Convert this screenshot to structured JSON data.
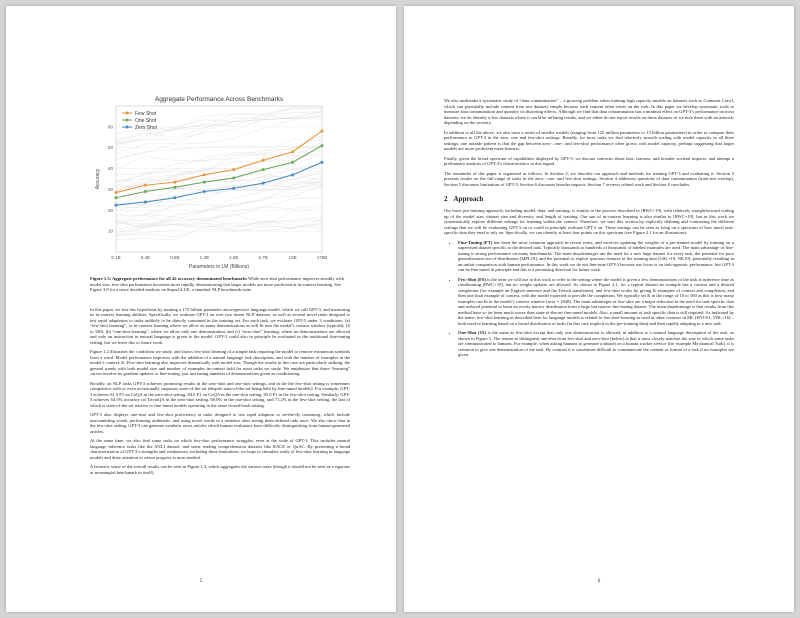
{
  "left_page": {
    "figure": {
      "chart_data": {
        "type": "line",
        "title": "Aggregate Performance Across Benchmarks",
        "xlabel": "Parameters in LM (Billions)",
        "ylabel": "Accuracy",
        "x_ticks": [
          "0.1B",
          "0.4B",
          "0.8B",
          "1.3B",
          "2.6B",
          "6.7B",
          "13B",
          "175B"
        ],
        "y_ticks": [
          "10",
          "20",
          "30",
          "40",
          "50",
          "60"
        ],
        "ylim": [
          0,
          70
        ],
        "legend_position": "top-left",
        "grid": true,
        "series": [
          {
            "name": "Few Shot",
            "color": "#e8963a",
            "values": [
              28.5,
              32,
              33.5,
              37,
              39.5,
              44,
              48,
              58
            ]
          },
          {
            "name": "One Shot",
            "color": "#6aaa5c",
            "values": [
              26,
              29,
              31,
              33.5,
              35.5,
              39.5,
              43,
              51
            ]
          },
          {
            "name": "Zero Shot",
            "color": "#4a8ec2",
            "values": [
              22.5,
              24,
              26,
              29,
              30.5,
              33,
              37,
              43
            ]
          }
        ],
        "bg_lines": {
          "color": "#cccccc",
          "count": 40
        }
      },
      "caption_bold": "Figure 1.3: Aggregate performance for all 42 accuracy-denominated benchmarks",
      "caption_text": "While zero-shot performance improves steadily with model size, few-shot performance increases more rapidly, demonstrating that larger models are more proficient at in-context learning. See Figure 3.8 for a more detailed analysis on SuperGLUE, a standard NLP benchmark suite."
    },
    "paragraphs": [
      "In this paper, we test this hypothesis by training a 175 billion parameter autoregressive language model, which we call GPT-3, and measuring its in-context learning abilities. Specifically, we evaluate GPT-3 on over two dozen NLP datasets, as well as several novel tasks designed to test rapid adaptation to tasks unlikely to be directly contained in the training set. For each task, we evaluate GPT-3 under 3 conditions: (a) “few-shot learning”, or in-context learning where we allow as many demonstrations as will fit into the model’s context window (typically 10 to 100), (b) “one-shot learning”, where we allow only one demonstration, and (c) “zero-shot” learning, where no demonstrations are allowed and only an instruction in natural language is given to the model. GPT-3 could also in principle be evaluated in the traditional fine-tuning setting, but we leave this to future work.",
      "Figure 1.2 illustrates the conditions we study, and shows few-shot learning of a simple task requiring the model to remove extraneous symbols from a word. Model performance improves with the addition of a natural language task description, and with the number of examples in the model’s context, K. Few-shot learning also improves dramatically with model size. Though the results in this case are particularly striking, the general trends with both model size and number of examples in-context hold for most tasks we study. We emphasize that these “learning” curves involve no gradient updates or fine-tuning, just increasing numbers of demonstrations given as conditioning.",
      "Broadly, on NLP tasks GPT-3 achieves promising results in the zero-shot and one-shot settings, and in the the few-shot setting is sometimes competitive with or even occasionally surpasses state-of-the-art (despite state-of-the-art being held by fine-tuned models). For example, GPT-3 achieves 81.5 F1 on CoQA in the zero-shot setting, 84.0 F1 on CoQA in the one-shot setting, 85.0 F1 in the few-shot setting. Similarly, GPT-3 achieves 64.3% accuracy on TriviaQA in the zero-shot setting, 68.0% in the one-shot setting, and 71.2% in the few-shot setting, the last of which is state-of-the-art relative to fine-tuned models operating in the same closed-book setting.",
      "GPT-3 also displays one-shot and few-shot proficiency at tasks designed to test rapid adaption or on-the-fly reasoning, which include unscrambling words, performing arithmetic, and using novel words in a sentence after seeing them defined only once. We also show that in the few-shot setting, GPT-3 can generate synthetic news articles which human evaluators have difficulty distinguishing from human-generated articles.",
      "At the same time, we also find some tasks on which few-shot performance struggles, even at the scale of GPT-3. This includes natural language inference tasks like the ANLI dataset, and some reading comprehension datasets like RACE or QuAC. By presenting a broad characterization of GPT-3’s strengths and weaknesses, including these limitations, we hope to stimulate study of few-shot learning in language models and draw attention to where progress is most needed.",
      "A heuristic sense of the overall results can be seen in Figure 1.3, which aggregates the various tasks (though it should not be seen as a rigorous or meaningful benchmark in itself)."
    ],
    "page_number": "5"
  },
  "right_page": {
    "paragraphs": [
      "We also undertake a systematic study of “data contamination” – a growing problem when training high capacity models on datasets such as Common Crawl, which can potentially include content from test datasets simply because such content often exists on the web. In this paper we develop systematic tools to measure data contamination and quantify its distorting effects. Although we find that data contamination has a minimal effect on GPT-3’s performance on most datasets, we do identify a few datasets where it could be inflating results, and we either do not report results on these datasets or we note them with an asterisk, depending on the severity.",
      "In addition to all the above, we also train a series of smaller models (ranging from 125 million parameters to 13 billion parameters) in order to compare their performance to GPT-3 in the zero, one and few-shot settings. Broadly, for most tasks we find relatively smooth scaling with model capacity in all three settings; one notable pattern is that the gap between zero-, one-, and few-shot performance often grows with model capacity, perhaps suggesting that larger models are more proficient meta-learners.",
      "Finally, given the broad spectrum of capabilities displayed by GPT-3, we discuss concerns about bias, fairness, and broader societal impacts, and attempt a preliminary analysis of GPT-3’s characteristics in this regard.",
      "The remainder of this paper is organized as follows. In Section 2, we describe our approach and methods for training GPT-3 and evaluating it. Section 3 presents results on the full range of tasks in the zero-, one- and few-shot settings. Section 4 addresses questions of data contamination (train-test overlap). Section 5 discusses limitations of GPT-3. Section 6 discusses broader impacts. Section 7 reviews related work and Section 8 concludes."
    ],
    "section": {
      "number": "2",
      "title": "Approach"
    },
    "section_intro": "Our basic pre-training approach, including model, data, and training, is similar to the process described in [RWC+19], with relatively straightforward scaling up of the model size, dataset size and diversity, and length of training. Our use of in-context learning is also similar to [RWC+19], but in this work we systematically explore different settings for learning within the context. Therefore, we start this section by explicitly defining and contrasting the different settings that we will be evaluating GPT-3 on or could in principle evaluate GPT-3 on. These settings can be seen as lying on a spectrum of how much task-specific data they tend to rely on. Specifically, we can identify at least four points on this spectrum (see Figure 2.1 for an illustration):",
    "bullets": [
      {
        "term": "Fine-Tuning (FT)",
        "text": "has been the most common approach in recent years, and involves updating the weights of a pre-trained model by training on a supervised dataset specific to the desired task. Typically thousands to hundreds of thousands of labeled examples are used. The main advantage of fine-tuning is strong performance on many benchmarks. The main disadvantages are the need for a new large dataset for every task, the potential for poor generalization out-of-distribution [MPL19], and the potential to exploit spurious features of the training data [GSL+18, NK19], potentially resulting in an unfair comparison with human performance. In this work we do not fine-tune GPT-3 because our focus is on task-agnostic performance, but GPT-3 can be fine-tuned in principle and this is a promising direction for future work."
      },
      {
        "term": "Few-Shot (FS)",
        "text": "is the term we will use in this work to refer to the setting where the model is given a few demonstrations of the task at inference time as conditioning [RWC+19], but no weight updates are allowed. As shown in Figure 2.1, for a typical dataset an example has a context and a desired completion (for example an English sentence and the French translation), and few-shot works by giving K examples of context and completion, and then one final example of context, with the model expected to provide the completion. We typically set K in the range of 10 to 100 as this is how many examples can fit in the model’s context window (nctx = 2048). The main advantages of few-shot are a major reduction in the need for task-specific data and reduced potential to learn an overly narrow distribution from a large but narrow fine-tuning dataset. The main disadvantage is that results from this method have so far been much worse than state-of-the-art fine-tuned models. Also, a small amount of task specific data is still required. As indicated by the name, few-shot learning as described here for language models is related to few-shot learning as used in other contexts in ML [HYC01, VBL+16] – both involve learning based on a broad distribution of tasks (in this case implicit in the pre-training data) and then rapidly adapting to a new task."
      },
      {
        "term": "One-Shot (1S)",
        "text": "is the same as few-shot except that only one demonstration is allowed, in addition to a natural language description of the task, as shown in Figure 1. The reason to distinguish one-shot from few-shot and zero-shot (below) is that it most closely matches the way in which some tasks are communicated to humans. For example, when asking humans to generate a dataset on a human worker service (for example Mechanical Turk), it is common to give one demonstration of the task. By contrast it is sometimes difficult to communicate the content or format of a task if no examples are given."
      }
    ],
    "page_number": "6"
  }
}
